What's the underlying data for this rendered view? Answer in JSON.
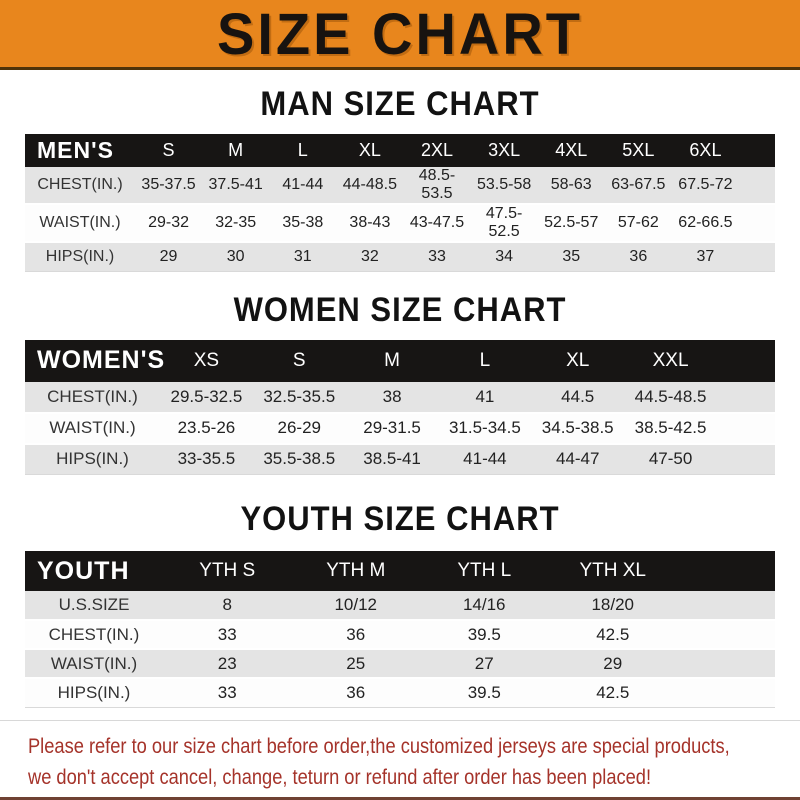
{
  "banner": {
    "title": "SIZE CHART"
  },
  "chart_data": [
    {
      "type": "table",
      "title": "MAN SIZE CHART",
      "corner_label": "MEN'S",
      "columns": [
        "S",
        "M",
        "L",
        "XL",
        "2XL",
        "3XL",
        "4XL",
        "5XL",
        "6XL"
      ],
      "rows": [
        {
          "label": "CHEST(IN.)",
          "values": [
            "35-37.5",
            "37.5-41",
            "41-44",
            "44-48.5",
            "48.5-53.5",
            "53.5-58",
            "58-63",
            "63-67.5",
            "67.5-72"
          ]
        },
        {
          "label": "WAIST(IN.)",
          "values": [
            "29-32",
            "32-35",
            "35-38",
            "38-43",
            "43-47.5",
            "47.5-52.5",
            "52.5-57",
            "57-62",
            "62-66.5"
          ]
        },
        {
          "label": "HIPS(IN.)",
          "values": [
            "29",
            "30",
            "31",
            "32",
            "33",
            "34",
            "35",
            "36",
            "37"
          ]
        }
      ]
    },
    {
      "type": "table",
      "title": "WOMEN SIZE CHART",
      "corner_label": "WOMEN'S",
      "columns": [
        "XS",
        "S",
        "M",
        "L",
        "XL",
        "XXL"
      ],
      "rows": [
        {
          "label": "CHEST(IN.)",
          "values": [
            "29.5-32.5",
            "32.5-35.5",
            "38",
            "41",
            "44.5",
            "44.5-48.5"
          ]
        },
        {
          "label": "WAIST(IN.)",
          "values": [
            "23.5-26",
            "26-29",
            "29-31.5",
            "31.5-34.5",
            "34.5-38.5",
            "38.5-42.5"
          ]
        },
        {
          "label": "HIPS(IN.)",
          "values": [
            "33-35.5",
            "35.5-38.5",
            "38.5-41",
            "41-44",
            "44-47",
            "47-50"
          ]
        }
      ]
    },
    {
      "type": "table",
      "title": "YOUTH SIZE CHART",
      "corner_label": "YOUTH",
      "columns": [
        "YTH S",
        "YTH M",
        "YTH L",
        "YTH XL"
      ],
      "rows": [
        {
          "label": "U.S.SIZE",
          "values": [
            "8",
            "10/12",
            "14/16",
            "18/20"
          ]
        },
        {
          "label": "CHEST(IN.)",
          "values": [
            "33",
            "36",
            "39.5",
            "42.5"
          ]
        },
        {
          "label": "WAIST(IN.)",
          "values": [
            "23",
            "25",
            "27",
            "29"
          ]
        },
        {
          "label": "HIPS(IN.)",
          "values": [
            "33",
            "36",
            "39.5",
            "42.5"
          ]
        }
      ]
    }
  ],
  "footer": {
    "line1": "Please refer to our size chart before order,the customized jerseys are special products,",
    "line2": "we don't accept cancel, change, teturn or refund after order has been placed!"
  },
  "colors": {
    "banner_orange": "#e8861d",
    "banner_text": "#171310",
    "table_header_black": "#171514",
    "stripe_gray": "#e4e4e4",
    "footer_red": "#a5332a",
    "bottom_edge_brown": "#6f4133"
  }
}
